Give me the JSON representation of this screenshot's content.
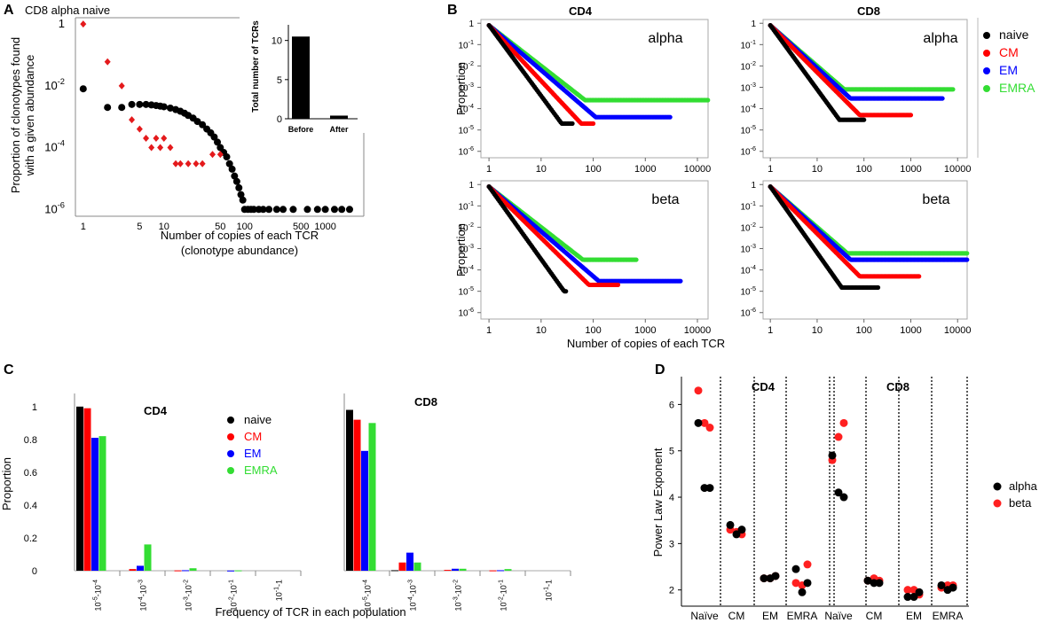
{
  "panel_labels": {
    "a": "A",
    "b": "B",
    "c": "C",
    "d": "D"
  },
  "chart_data": [
    {
      "id": "A",
      "type": "scatter",
      "title": "CD8 alpha naive",
      "xlabel_line1": "Number of copies of each TCR",
      "xlabel_line2": "(clonotype abundance)",
      "ylabel_line1": "Proportion  of clonotypes found",
      "ylabel_line2": "with a given  abundance",
      "xscale": "log",
      "yscale": "log",
      "xlim": [
        0.8,
        3000
      ],
      "ylim": [
        6e-07,
        1.6
      ],
      "xticks": [
        {
          "v": 1,
          "l": "1"
        },
        {
          "v": 5,
          "l": "5"
        },
        {
          "v": 10,
          "l": "10"
        },
        {
          "v": 50,
          "l": "50"
        },
        {
          "v": 100,
          "l": "100"
        },
        {
          "v": 500,
          "l": "500"
        },
        {
          "v": 1000,
          "l": "1000"
        }
      ],
      "yticks": [
        {
          "v": 1,
          "l": "1",
          "e": ""
        },
        {
          "v": 0.01,
          "l": "10",
          "e": "-2"
        },
        {
          "v": 0.0001,
          "l": "10",
          "e": "-4"
        },
        {
          "v": 1e-06,
          "l": "10",
          "e": "-6"
        }
      ],
      "series": [
        {
          "name": "before",
          "color": "#000000",
          "marker": "circle",
          "x": [
            1,
            2,
            3,
            4,
            5,
            6,
            7,
            8,
            9,
            10,
            12,
            14,
            16,
            18,
            20,
            23,
            26,
            30,
            34,
            38,
            42,
            46,
            50,
            55,
            60,
            65,
            70,
            75,
            80,
            85,
            90,
            95,
            100,
            110,
            120,
            130,
            150,
            170,
            200,
            250,
            300,
            400,
            600,
            800,
            1000,
            1300,
            1600,
            2000
          ],
          "y": [
            0.008,
            0.002,
            0.002,
            0.0025,
            0.0025,
            0.0025,
            0.0024,
            0.0023,
            0.0022,
            0.0021,
            0.0019,
            0.0017,
            0.0015,
            0.0013,
            0.0011,
            0.0009,
            0.0007,
            0.00055,
            0.0004,
            0.0003,
            0.00022,
            0.00015,
            0.0001,
            7e-05,
            5e-05,
            3e-05,
            2e-05,
            1.2e-05,
            8e-06,
            5e-06,
            3e-06,
            2e-06,
            1e-06,
            1e-06,
            1e-06,
            1e-06,
            1e-06,
            1e-06,
            1e-06,
            1e-06,
            1e-06,
            1e-06,
            1e-06,
            1e-06,
            1e-06,
            1e-06,
            1e-06,
            1e-06
          ]
        },
        {
          "name": "after",
          "color": "#e41a1c",
          "marker": "diamond",
          "x": [
            1,
            2,
            3,
            4,
            5,
            6,
            7,
            8,
            9,
            10,
            12,
            14,
            16,
            20,
            25,
            30,
            40,
            50
          ],
          "y": [
            1,
            0.06,
            0.01,
            0.0008,
            0.0004,
            0.0002,
            0.0001,
            0.0002,
            0.0001,
            0.0002,
            0.0001,
            3e-05,
            3e-05,
            3e-05,
            3e-05,
            3e-05,
            6e-05,
            6e-05
          ]
        }
      ],
      "inset": {
        "type": "bar",
        "ylabel": "Total number of TCRs",
        "categories": [
          "Before",
          "After"
        ],
        "values": [
          10.5,
          0.4
        ],
        "ylim": [
          0,
          12
        ],
        "yticks": [
          {
            "v": 0,
            "l": "0"
          },
          {
            "v": 5,
            "l": "5"
          },
          {
            "v": 10,
            "l": "10"
          }
        ]
      }
    },
    {
      "id": "B",
      "type": "scatter",
      "xlabel": "Number of copies of each TCR",
      "ylabel": "Proportion",
      "column_titles": [
        "CD4",
        "CD8"
      ],
      "row_labels": [
        "alpha",
        "beta"
      ],
      "xscale": "log",
      "yscale": "log",
      "xlim": [
        0.7,
        16000
      ],
      "ylim": [
        5e-07,
        1.5
      ],
      "xticks": [
        {
          "v": 1,
          "l": "1"
        },
        {
          "v": 10,
          "l": "10"
        },
        {
          "v": 100,
          "l": "100"
        },
        {
          "v": 1000,
          "l": "1000"
        },
        {
          "v": 10000,
          "l": "10000"
        }
      ],
      "yticks": [
        {
          "v": 1,
          "l": "1",
          "e": ""
        },
        {
          "v": 0.1,
          "l": "10",
          "e": "-1"
        },
        {
          "v": 0.01,
          "l": "10",
          "e": "-2"
        },
        {
          "v": 0.001,
          "l": "10",
          "e": "-3"
        },
        {
          "v": 0.0001,
          "l": "10",
          "e": "-4"
        },
        {
          "v": 1e-05,
          "l": "10",
          "e": "-5"
        },
        {
          "v": 1e-06,
          "l": "10",
          "e": "-6"
        }
      ],
      "legend": [
        {
          "name": "naive",
          "color": "#000000"
        },
        {
          "name": "CM",
          "color": "#ff0000"
        },
        {
          "name": "EM",
          "color": "#0000ff"
        },
        {
          "name": "EMRA",
          "color": "#33dd33"
        }
      ],
      "series_params": [
        {
          "panel": "CD4-alpha",
          "slopes": [
            3.3,
            2.6,
            2.1,
            1.9
          ],
          "floors": [
            2e-05,
            2e-05,
            4e-05,
            0.00025
          ],
          "xmax": [
            40,
            100,
            3000,
            16000
          ]
        },
        {
          "panel": "CD8-alpha",
          "slopes": [
            3.0,
            2.2,
            2.0,
            1.9
          ],
          "floors": [
            3e-05,
            5e-05,
            0.0003,
            0.0008
          ],
          "xmax": [
            100,
            1000,
            5000,
            8000
          ]
        },
        {
          "panel": "CD4-beta",
          "slopes": [
            3.4,
            2.4,
            2.1,
            1.9
          ],
          "floors": [
            1e-05,
            2e-05,
            3e-05,
            0.0003
          ],
          "xmax": [
            30,
            300,
            5000,
            700
          ]
        },
        {
          "panel": "CD8-beta",
          "slopes": [
            3.1,
            2.2,
            2.0,
            1.9
          ],
          "floors": [
            1.5e-05,
            5e-05,
            0.0003,
            0.0006
          ],
          "xmax": [
            200,
            1500,
            16000,
            16000
          ]
        }
      ]
    },
    {
      "id": "C",
      "type": "bar",
      "xlabel": "Frequency of TCR in each population",
      "ylabel": "Proportion",
      "subplot_titles": [
        "CD4",
        "CD8"
      ],
      "categories": [
        {
          "b": "10",
          "e1": "-5",
          "mid": "-10",
          "e2": "-4"
        },
        {
          "b": "10",
          "e1": "-4",
          "mid": "-10",
          "e2": "-3"
        },
        {
          "b": "10",
          "e1": "-3",
          "mid": "-10",
          "e2": "-2"
        },
        {
          "b": "10",
          "e1": "-2",
          "mid": "-10",
          "e2": "-1"
        },
        {
          "b": "10",
          "e1": "-1",
          "mid": "-1",
          "e2": ""
        }
      ],
      "ylim": [
        0,
        1.08
      ],
      "yticks": [
        {
          "v": 0,
          "l": "0"
        },
        {
          "v": 0.2,
          "l": "0.2"
        },
        {
          "v": 0.4,
          "l": "0.4"
        },
        {
          "v": 0.6,
          "l": "0.6"
        },
        {
          "v": 0.8,
          "l": "0.8"
        },
        {
          "v": 1,
          "l": "1"
        }
      ],
      "legend": [
        {
          "name": "naive",
          "color": "#000000"
        },
        {
          "name": "CM",
          "color": "#ff0000"
        },
        {
          "name": "EM",
          "color": "#0000ff"
        },
        {
          "name": "EMRA",
          "color": "#33dd33"
        }
      ],
      "series_cd4": [
        {
          "name": "naive",
          "values": [
            1.0,
            0.0,
            0.0,
            0.0,
            0.0
          ]
        },
        {
          "name": "CM",
          "values": [
            0.99,
            0.01,
            0.002,
            0.0,
            0.0
          ]
        },
        {
          "name": "EM",
          "values": [
            0.81,
            0.03,
            0.003,
            0.001,
            0.0
          ]
        },
        {
          "name": "EMRA",
          "values": [
            0.82,
            0.16,
            0.015,
            0.002,
            0.0
          ]
        }
      ],
      "series_cd8": [
        {
          "name": "naive",
          "values": [
            0.98,
            0.003,
            0.0,
            0.0,
            0.0
          ]
        },
        {
          "name": "CM",
          "values": [
            0.92,
            0.05,
            0.005,
            0.002,
            0.0
          ]
        },
        {
          "name": "EM",
          "values": [
            0.73,
            0.11,
            0.012,
            0.003,
            0.0
          ]
        },
        {
          "name": "EMRA",
          "values": [
            0.9,
            0.05,
            0.012,
            0.01,
            0.0
          ]
        }
      ]
    },
    {
      "id": "D",
      "type": "scatter",
      "ylabel": "Power Law Exponent",
      "group_titles": [
        "CD4",
        "CD8"
      ],
      "categories": [
        "Naïve",
        "CM",
        "EM",
        "EMRA",
        "Naïve",
        "CM",
        "EM",
        "EMRA"
      ],
      "ylim": [
        1.65,
        6.6
      ],
      "yticks": [
        {
          "v": 2,
          "l": "2"
        },
        {
          "v": 3,
          "l": "3"
        },
        {
          "v": 4,
          "l": "4"
        },
        {
          "v": 5,
          "l": "5"
        },
        {
          "v": 6,
          "l": "6"
        }
      ],
      "legend": [
        {
          "name": "alpha",
          "color": "#000000"
        },
        {
          "name": "beta",
          "color": "#ff2020"
        }
      ],
      "alpha": [
        [
          4.2,
          4.2,
          5.6
        ],
        [
          3.2,
          3.3,
          3.4
        ],
        [
          2.25,
          2.3,
          2.25
        ],
        [
          1.95,
          2.15,
          2.45
        ],
        [
          4.1,
          4.0,
          4.9
        ],
        [
          2.15,
          2.15,
          2.2
        ],
        [
          1.85,
          1.95,
          1.85
        ],
        [
          2.0,
          2.05,
          2.1
        ]
      ],
      "beta": [
        [
          6.3,
          5.6,
          5.5
        ],
        [
          3.3,
          3.25,
          3.2
        ],
        [
          2.25,
          2.25,
          2.3
        ],
        [
          2.15,
          2.1,
          2.55
        ],
        [
          4.8,
          5.3,
          5.6
        ],
        [
          2.2,
          2.25,
          2.2
        ],
        [
          2.0,
          2.0,
          1.9
        ],
        [
          2.05,
          2.1,
          2.1
        ]
      ]
    }
  ]
}
